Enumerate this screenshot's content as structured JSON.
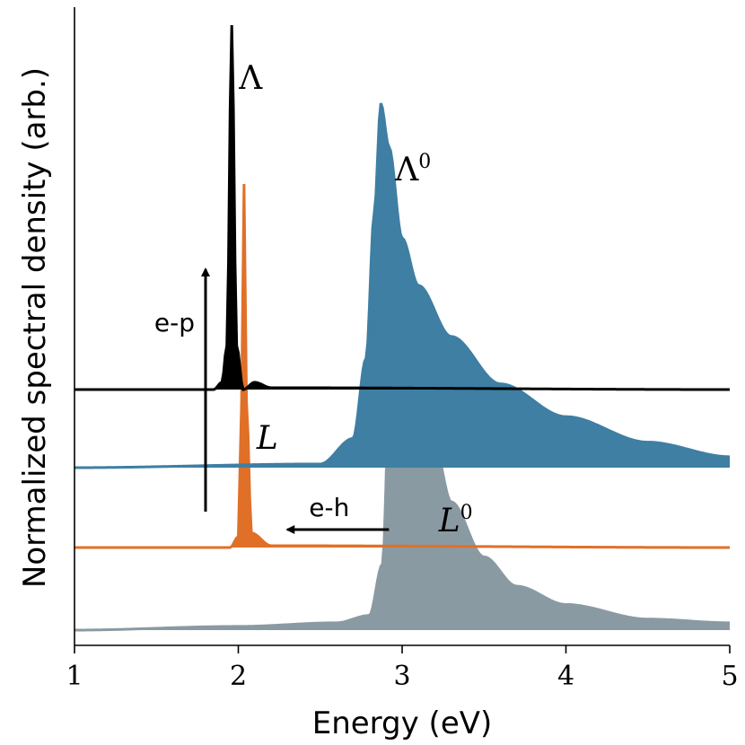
{
  "chart_data": {
    "type": "area",
    "title": "",
    "xlabel": "Energy (eV)",
    "ylabel": "Normalized spectral density (arb.)",
    "xlim": [
      1,
      5
    ],
    "xticks": [
      1,
      2,
      3,
      4,
      5
    ],
    "grid": false,
    "legend": "none",
    "units": "y values are normalized stacked intensities (arb.)",
    "series": [
      {
        "name": "L0",
        "label_main": "L",
        "label_sup": "0",
        "italic": true,
        "color": "#8a9aa2",
        "baseline": 0.0,
        "filled": true,
        "points": [
          [
            1.0,
            0.0
          ],
          [
            2.0,
            0.01
          ],
          [
            2.6,
            0.02
          ],
          [
            2.8,
            0.04
          ],
          [
            2.88,
            0.18
          ],
          [
            2.93,
            0.75
          ],
          [
            2.96,
            1.0
          ],
          [
            3.0,
            0.92
          ],
          [
            3.05,
            0.82
          ],
          [
            3.1,
            0.7
          ],
          [
            3.2,
            0.5
          ],
          [
            3.3,
            0.35
          ],
          [
            3.5,
            0.2
          ],
          [
            3.7,
            0.12
          ],
          [
            4.0,
            0.07
          ],
          [
            4.5,
            0.03
          ],
          [
            5.0,
            0.02
          ]
        ]
      },
      {
        "name": "L",
        "label_main": "L",
        "label_sup": "",
        "italic": true,
        "color": "#e07028",
        "baseline": 0.22,
        "filled": true,
        "points": [
          [
            1.0,
            0.0
          ],
          [
            1.95,
            0.0
          ],
          [
            2.0,
            0.03
          ],
          [
            2.02,
            0.4
          ],
          [
            2.035,
            1.0
          ],
          [
            2.05,
            0.4
          ],
          [
            2.08,
            0.04
          ],
          [
            2.2,
            0.005
          ],
          [
            5.0,
            0.0
          ]
        ]
      },
      {
        "name": "Lambda0",
        "label_main": "Λ",
        "label_sup": "0",
        "italic": false,
        "color": "#3e7fa3",
        "baseline": 0.45,
        "filled": true,
        "points": [
          [
            1.0,
            0.0
          ],
          [
            2.5,
            0.01
          ],
          [
            2.7,
            0.08
          ],
          [
            2.78,
            0.3
          ],
          [
            2.83,
            0.7
          ],
          [
            2.87,
            1.0
          ],
          [
            2.92,
            0.88
          ],
          [
            3.0,
            0.63
          ],
          [
            3.1,
            0.5
          ],
          [
            3.3,
            0.36
          ],
          [
            3.6,
            0.23
          ],
          [
            4.0,
            0.14
          ],
          [
            4.5,
            0.07
          ],
          [
            5.0,
            0.03
          ]
        ]
      },
      {
        "name": "Lambda",
        "label_main": "Λ",
        "label_sup": "",
        "italic": false,
        "color": "#000000",
        "baseline": 0.67,
        "filled": true,
        "points": [
          [
            1.0,
            0.0
          ],
          [
            1.85,
            0.0
          ],
          [
            1.9,
            0.02
          ],
          [
            1.93,
            0.12
          ],
          [
            1.96,
            1.0
          ],
          [
            1.99,
            0.12
          ],
          [
            2.03,
            0.0
          ],
          [
            2.1,
            0.02
          ],
          [
            2.2,
            0.005
          ],
          [
            5.0,
            0.0
          ]
        ]
      }
    ],
    "annotations": [
      {
        "text": "e-p",
        "type": "arrow",
        "direction": "up",
        "x": 1.8,
        "y_from": 0.35,
        "y_to": 1.0
      },
      {
        "text": "e-h",
        "type": "arrow",
        "direction": "left",
        "x_from": 2.92,
        "x_to": 2.3,
        "y": 0.28
      }
    ]
  }
}
